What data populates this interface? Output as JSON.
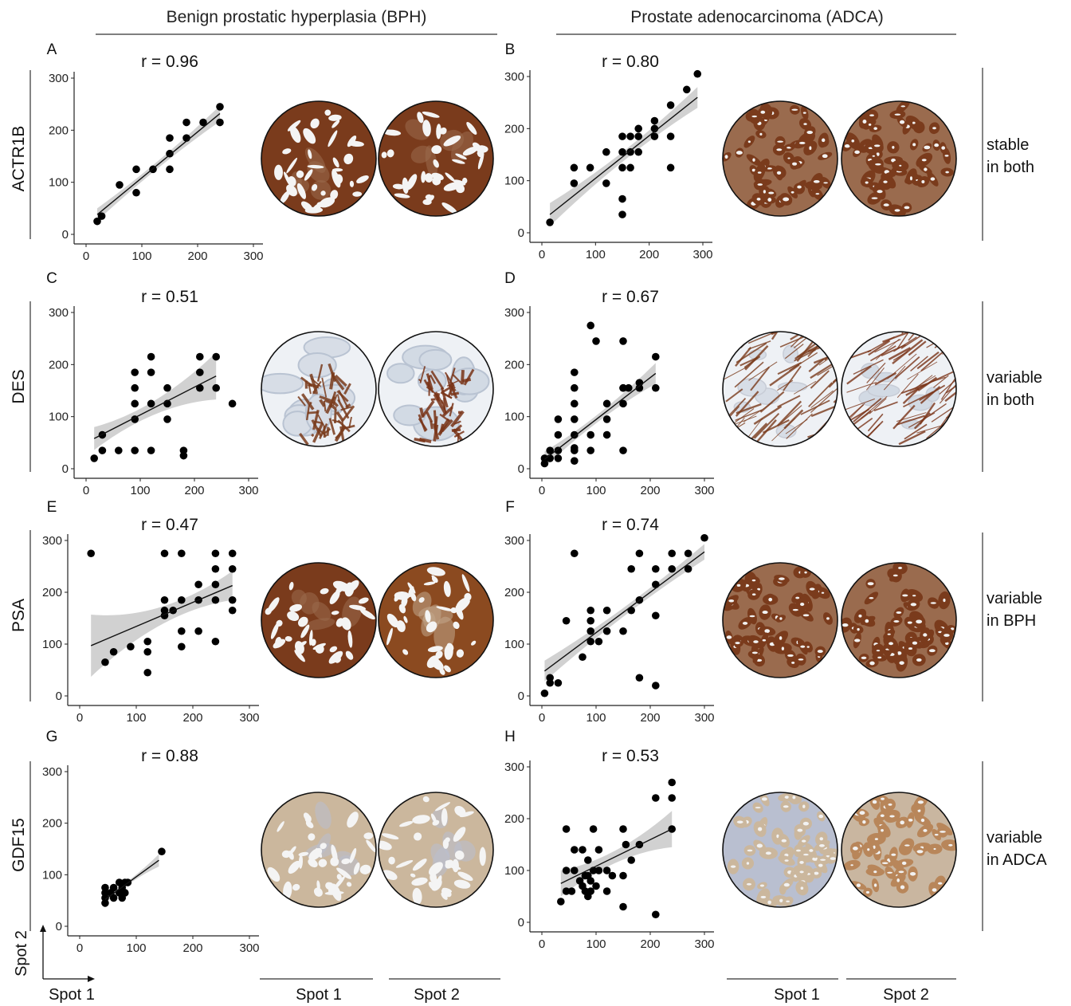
{
  "headers": {
    "left": "Benign prostatic hyperplasia (BPH)",
    "right": "Prostate adenocarcinoma (ADCA)"
  },
  "rows": [
    {
      "protein": "ACTR1B",
      "desc_line1": "stable",
      "desc_line2": "in both"
    },
    {
      "protein": "DES",
      "desc_line1": "variable",
      "desc_line2": "in both"
    },
    {
      "protein": "PSA",
      "desc_line1": "variable",
      "desc_line2": "in BPH"
    },
    {
      "protein": "GDF15",
      "desc_line1": "variable",
      "desc_line2": "in ADCA"
    }
  ],
  "axis_legend": {
    "y": "Spot 2",
    "x": "Spot 1"
  },
  "spot_labels": [
    "Spot 1",
    "Spot 2",
    "Spot 1",
    "Spot 2"
  ],
  "colors": {
    "points": "#000000",
    "ci_band": "#c9c9c9",
    "strong_stain": "#7a3b1c",
    "weak_stain": "#c7a27a",
    "background_tissue": "#eef0f3"
  },
  "chart_data": [
    {
      "panel": "A",
      "type": "scatter",
      "title": "r = 0.96",
      "xlim": [
        0,
        300
      ],
      "ylim": [
        0,
        300
      ],
      "xticks": [
        0,
        100,
        200,
        300
      ],
      "yticks": [
        0,
        100,
        200,
        300
      ],
      "x": [
        20,
        28,
        60,
        90,
        90,
        120,
        150,
        150,
        150,
        180,
        180,
        210,
        240,
        240
      ],
      "y": [
        25,
        35,
        95,
        80,
        125,
        125,
        125,
        155,
        185,
        185,
        215,
        215,
        215,
        245
      ],
      "fit": [
        [
          20,
          38
        ],
        [
          240,
          232
        ]
      ],
      "ci_half_width": [
        12,
        7,
        15
      ]
    },
    {
      "panel": "B",
      "type": "scatter",
      "title": "r = 0.80",
      "xlim": [
        0,
        300
      ],
      "ylim": [
        0,
        300
      ],
      "xticks": [
        0,
        100,
        200,
        300
      ],
      "yticks": [
        0,
        100,
        200,
        300
      ],
      "x": [
        15,
        60,
        60,
        90,
        120,
        120,
        150,
        150,
        150,
        150,
        150,
        165,
        165,
        165,
        180,
        180,
        180,
        210,
        210,
        210,
        240,
        240,
        240,
        270,
        290
      ],
      "y": [
        20,
        95,
        125,
        125,
        95,
        155,
        35,
        65,
        125,
        155,
        185,
        125,
        155,
        185,
        155,
        185,
        200,
        185,
        200,
        215,
        125,
        185,
        245,
        275,
        305
      ],
      "fit": [
        [
          15,
          35
        ],
        [
          290,
          260
        ]
      ],
      "ci_half_width": [
        22,
        8,
        20
      ]
    },
    {
      "panel": "C",
      "type": "scatter",
      "title": "r = 0.51",
      "xlim": [
        0,
        300
      ],
      "ylim": [
        0,
        300
      ],
      "xticks": [
        0,
        100,
        200,
        300
      ],
      "yticks": [
        0,
        100,
        200,
        300
      ],
      "x": [
        15,
        30,
        30,
        60,
        90,
        90,
        90,
        90,
        90,
        120,
        120,
        120,
        120,
        150,
        150,
        150,
        180,
        180,
        210,
        210,
        210,
        240,
        240,
        270
      ],
      "y": [
        20,
        35,
        65,
        35,
        35,
        95,
        125,
        155,
        185,
        35,
        125,
        185,
        215,
        95,
        125,
        155,
        25,
        35,
        155,
        185,
        215,
        155,
        215,
        125
      ],
      "fit": [
        [
          15,
          58
        ],
        [
          240,
          178
        ]
      ],
      "ci_half_width": [
        22,
        10,
        45
      ]
    },
    {
      "panel": "D",
      "type": "scatter",
      "title": "r = 0.67",
      "xlim": [
        0,
        300
      ],
      "ylim": [
        0,
        300
      ],
      "xticks": [
        0,
        100,
        200,
        300
      ],
      "yticks": [
        0,
        100,
        200,
        300
      ],
      "x": [
        5,
        5,
        15,
        15,
        30,
        30,
        30,
        30,
        60,
        60,
        60,
        60,
        60,
        60,
        60,
        60,
        90,
        90,
        90,
        100,
        120,
        120,
        120,
        150,
        150,
        150,
        150,
        150,
        160,
        180,
        180,
        210,
        210
      ],
      "y": [
        10,
        20,
        20,
        35,
        20,
        35,
        65,
        95,
        15,
        35,
        65,
        95,
        125,
        155,
        185,
        40,
        35,
        65,
        275,
        245,
        65,
        95,
        125,
        35,
        125,
        155,
        155,
        245,
        155,
        155,
        165,
        155,
        215
      ],
      "fit": [
        [
          5,
          18
        ],
        [
          210,
          183
        ]
      ],
      "ci_half_width": [
        15,
        6,
        20
      ]
    },
    {
      "panel": "E",
      "type": "scatter",
      "title": "r = 0.47",
      "xlim": [
        0,
        300
      ],
      "ylim": [
        0,
        300
      ],
      "xticks": [
        0,
        100,
        200,
        300
      ],
      "yticks": [
        0,
        100,
        200,
        300
      ],
      "x": [
        20,
        45,
        60,
        90,
        120,
        120,
        120,
        150,
        150,
        150,
        150,
        165,
        180,
        180,
        180,
        180,
        210,
        210,
        210,
        240,
        240,
        240,
        240,
        240,
        270,
        270,
        270,
        270
      ],
      "y": [
        275,
        65,
        85,
        95,
        45,
        85,
        105,
        155,
        165,
        185,
        275,
        165,
        95,
        125,
        185,
        275,
        125,
        185,
        215,
        105,
        185,
        215,
        245,
        275,
        165,
        185,
        245,
        275
      ],
      "fit": [
        [
          20,
          97
        ],
        [
          270,
          213
        ]
      ],
      "ci_half_width": [
        60,
        12,
        28
      ]
    },
    {
      "panel": "F",
      "type": "scatter",
      "title": "r = 0.74",
      "xlim": [
        0,
        300
      ],
      "ylim": [
        0,
        300
      ],
      "xticks": [
        0,
        100,
        200,
        300
      ],
      "yticks": [
        0,
        100,
        200,
        300
      ],
      "x": [
        5,
        15,
        15,
        30,
        45,
        60,
        75,
        90,
        90,
        90,
        90,
        105,
        120,
        120,
        150,
        165,
        165,
        180,
        180,
        180,
        210,
        210,
        210,
        210,
        240,
        240,
        270,
        270,
        300
      ],
      "y": [
        5,
        25,
        35,
        25,
        145,
        275,
        75,
        105,
        125,
        145,
        165,
        105,
        125,
        165,
        125,
        165,
        245,
        35,
        185,
        275,
        20,
        155,
        215,
        245,
        245,
        275,
        245,
        275,
        305
      ],
      "fit": [
        [
          5,
          48
        ],
        [
          300,
          278
        ]
      ],
      "ci_half_width": [
        20,
        8,
        15
      ]
    },
    {
      "panel": "G",
      "type": "scatter",
      "title": "r = 0.88",
      "xlim": [
        0,
        300
      ],
      "ylim": [
        0,
        300
      ],
      "xticks": [
        0,
        100,
        200,
        300
      ],
      "yticks": [
        0,
        100,
        200,
        300
      ],
      "x": [
        45,
        45,
        45,
        45,
        55,
        60,
        60,
        70,
        70,
        75,
        75,
        80,
        80,
        85,
        145
      ],
      "y": [
        45,
        55,
        65,
        75,
        65,
        55,
        75,
        65,
        85,
        55,
        75,
        65,
        85,
        85,
        145
      ],
      "fit": [
        [
          45,
          52
        ],
        [
          140,
          128
        ]
      ],
      "ci_half_width": [
        7,
        3,
        12
      ]
    },
    {
      "panel": "H",
      "type": "scatter",
      "title": "r = 0.53",
      "xlim": [
        0,
        300
      ],
      "ylim": [
        0,
        300
      ],
      "xticks": [
        0,
        100,
        200,
        300
      ],
      "yticks": [
        0,
        100,
        200,
        300
      ],
      "x": [
        35,
        45,
        45,
        45,
        55,
        60,
        60,
        70,
        75,
        75,
        80,
        80,
        85,
        85,
        85,
        90,
        90,
        95,
        95,
        100,
        105,
        105,
        120,
        120,
        130,
        150,
        150,
        150,
        155,
        165,
        180,
        210,
        210,
        240,
        240,
        240
      ],
      "y": [
        40,
        60,
        100,
        180,
        60,
        100,
        140,
        80,
        70,
        140,
        60,
        90,
        50,
        90,
        120,
        60,
        80,
        100,
        180,
        70,
        100,
        140,
        60,
        100,
        90,
        30,
        90,
        180,
        150,
        120,
        150,
        15,
        240,
        180,
        240,
        270
      ],
      "fit": [
        [
          35,
          75
        ],
        [
          240,
          180
        ]
      ],
      "ci_half_width": [
        25,
        9,
        35
      ]
    }
  ],
  "image_panels": [
    {
      "row": 0,
      "side": "left",
      "spot": 1,
      "stain": "strong",
      "pattern": "gland"
    },
    {
      "row": 0,
      "side": "left",
      "spot": 2,
      "stain": "strong",
      "pattern": "gland"
    },
    {
      "row": 0,
      "side": "right",
      "spot": 1,
      "stain": "strong",
      "pattern": "dense"
    },
    {
      "row": 0,
      "side": "right",
      "spot": 2,
      "stain": "strong",
      "pattern": "dense"
    },
    {
      "row": 1,
      "side": "left",
      "spot": 1,
      "stain": "stroma-weak",
      "pattern": "stroma"
    },
    {
      "row": 1,
      "side": "left",
      "spot": 2,
      "stain": "stroma-strong",
      "pattern": "stroma"
    },
    {
      "row": 1,
      "side": "right",
      "spot": 1,
      "stain": "stroma-weak",
      "pattern": "fibers"
    },
    {
      "row": 1,
      "side": "right",
      "spot": 2,
      "stain": "stroma-strong",
      "pattern": "fibers"
    },
    {
      "row": 2,
      "side": "left",
      "spot": 1,
      "stain": "strong",
      "pattern": "gland"
    },
    {
      "row": 2,
      "side": "left",
      "spot": 2,
      "stain": "medium",
      "pattern": "gland"
    },
    {
      "row": 2,
      "side": "right",
      "spot": 1,
      "stain": "strong",
      "pattern": "dense"
    },
    {
      "row": 2,
      "side": "right",
      "spot": 2,
      "stain": "strong",
      "pattern": "dense"
    },
    {
      "row": 3,
      "side": "left",
      "spot": 1,
      "stain": "faint",
      "pattern": "gland"
    },
    {
      "row": 3,
      "side": "left",
      "spot": 2,
      "stain": "faint",
      "pattern": "gland"
    },
    {
      "row": 3,
      "side": "right",
      "spot": 1,
      "stain": "faint",
      "pattern": "dense"
    },
    {
      "row": 3,
      "side": "right",
      "spot": 2,
      "stain": "weak",
      "pattern": "dense"
    }
  ]
}
